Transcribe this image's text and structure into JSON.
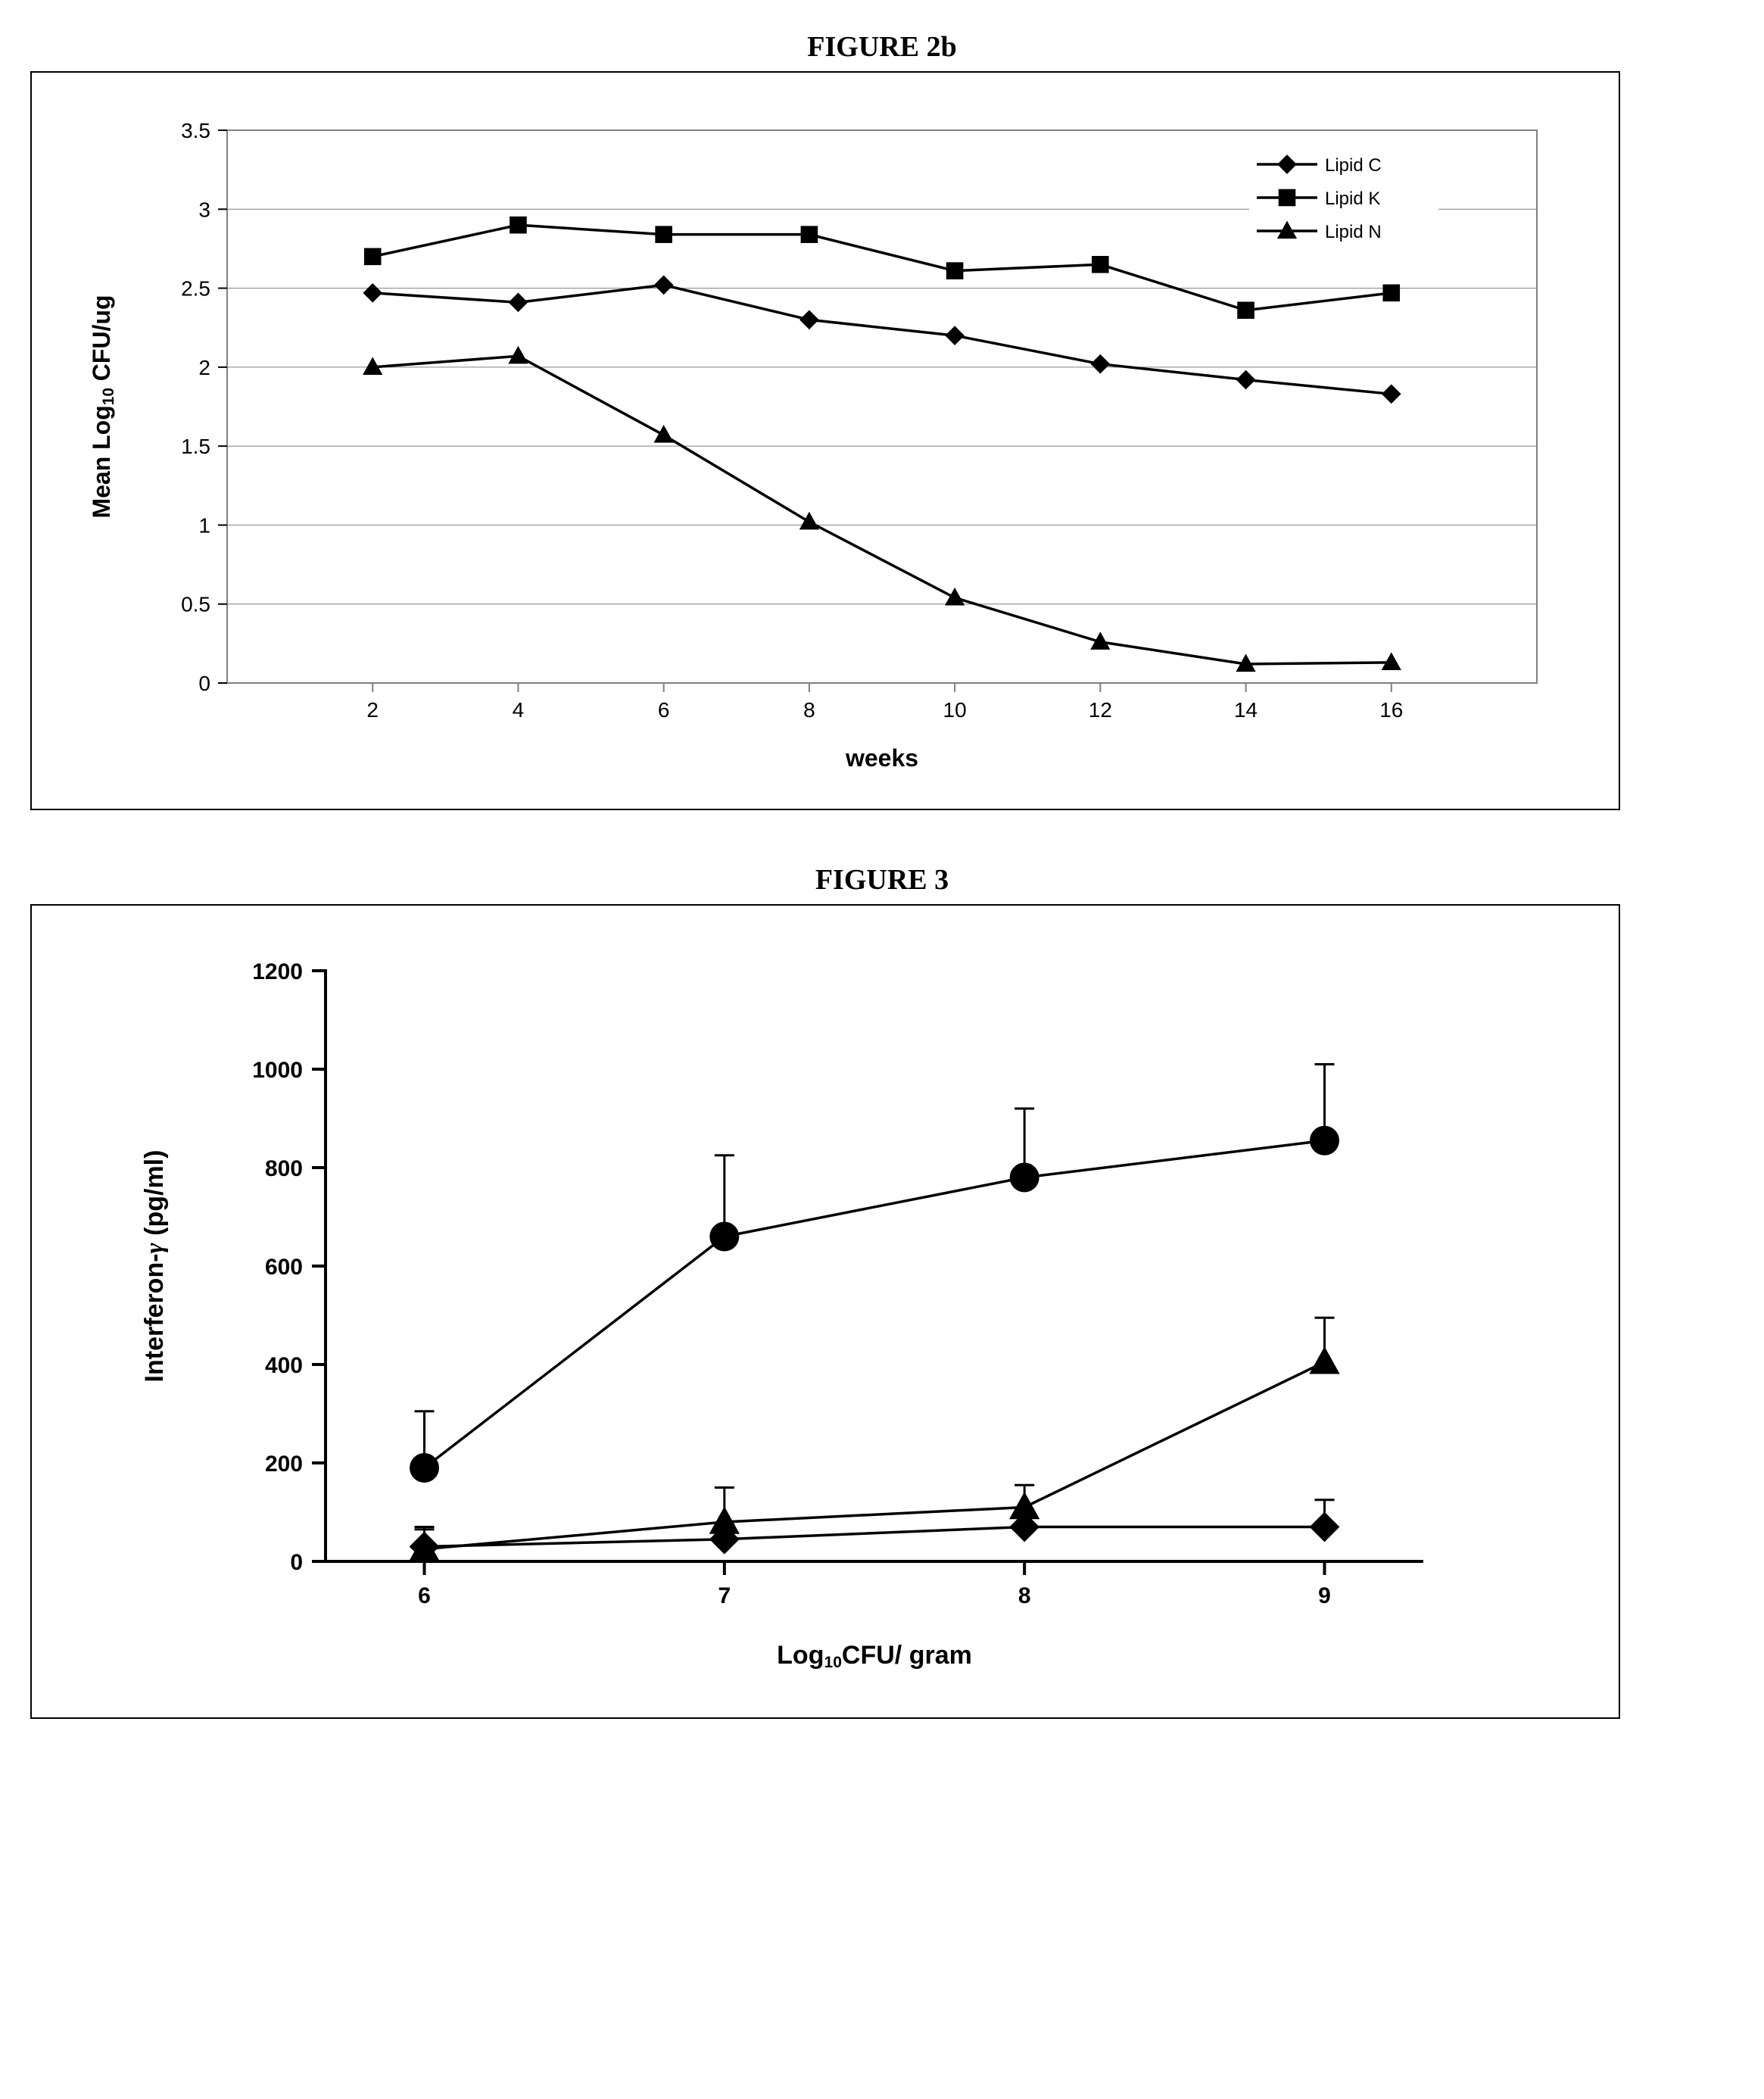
{
  "figure2b": {
    "title": "FIGURE 2b",
    "type": "line",
    "background_color": "#ffffff",
    "plot_border_color": "#808080",
    "gridline_color": "#808080",
    "font_family": "Arial, Helvetica, sans-serif",
    "tick_fontsize": 28,
    "label_fontsize": 32,
    "legend_fontsize": 24,
    "legend_position": "top-right",
    "x": {
      "label": "weeks",
      "ticks": [
        2,
        4,
        6,
        8,
        10,
        12,
        14,
        16
      ]
    },
    "y": {
      "label": "Mean Log₁₀ CFU/ug",
      "label_html": "Mean Log<sub>10</sub> CFU/ug",
      "ticks": [
        0,
        0.5,
        1,
        1.5,
        2,
        2.5,
        3,
        3.5
      ],
      "ylim": [
        0,
        3.5
      ]
    },
    "series": [
      {
        "name": "Lipid C",
        "marker": "diamond",
        "color": "#000000",
        "values": [
          2.47,
          2.41,
          2.52,
          2.3,
          2.2,
          2.02,
          1.92,
          1.83
        ]
      },
      {
        "name": "Lipid K",
        "marker": "square",
        "color": "#000000",
        "values": [
          2.7,
          2.9,
          2.84,
          2.84,
          2.61,
          2.65,
          2.36,
          2.47
        ]
      },
      {
        "name": "Lipid N",
        "marker": "triangle",
        "color": "#000000",
        "values": [
          2.0,
          2.07,
          1.57,
          1.02,
          0.54,
          0.26,
          0.12,
          0.13
        ]
      }
    ],
    "line_width": 3.5,
    "marker_size": 16
  },
  "figure3": {
    "title": "FIGURE 3",
    "type": "line-errorbar",
    "background_color": "#ffffff",
    "plot_border_color": "#000000",
    "font_family": "Arial, Helvetica, sans-serif",
    "tick_fontsize": 30,
    "label_fontsize": 34,
    "x": {
      "label": "Log₁₀CFU/ gram",
      "label_html": "Log<sub>10</sub>CFU/ gram",
      "ticks": [
        6,
        7,
        8,
        9
      ]
    },
    "y": {
      "label": "Interferon-γ (pg/ml)",
      "ticks": [
        0,
        200,
        400,
        600,
        800,
        1000,
        1200
      ],
      "ylim": [
        0,
        1200
      ]
    },
    "series": [
      {
        "name": "series-circle",
        "marker": "circle",
        "color": "#000000",
        "values": [
          190,
          660,
          780,
          855
        ],
        "err": [
          115,
          165,
          140,
          155
        ]
      },
      {
        "name": "series-triangle",
        "marker": "triangle",
        "color": "#000000",
        "values": [
          25,
          80,
          110,
          405
        ],
        "err": [
          45,
          70,
          45,
          90
        ]
      },
      {
        "name": "series-diamond",
        "marker": "diamond",
        "color": "#000000",
        "values": [
          30,
          45,
          70,
          70
        ],
        "err": [
          35,
          30,
          35,
          55
        ]
      }
    ],
    "line_width": 3.5,
    "marker_size": 24,
    "errorbar_cap_width": 26,
    "errorbar_line_width": 3
  }
}
